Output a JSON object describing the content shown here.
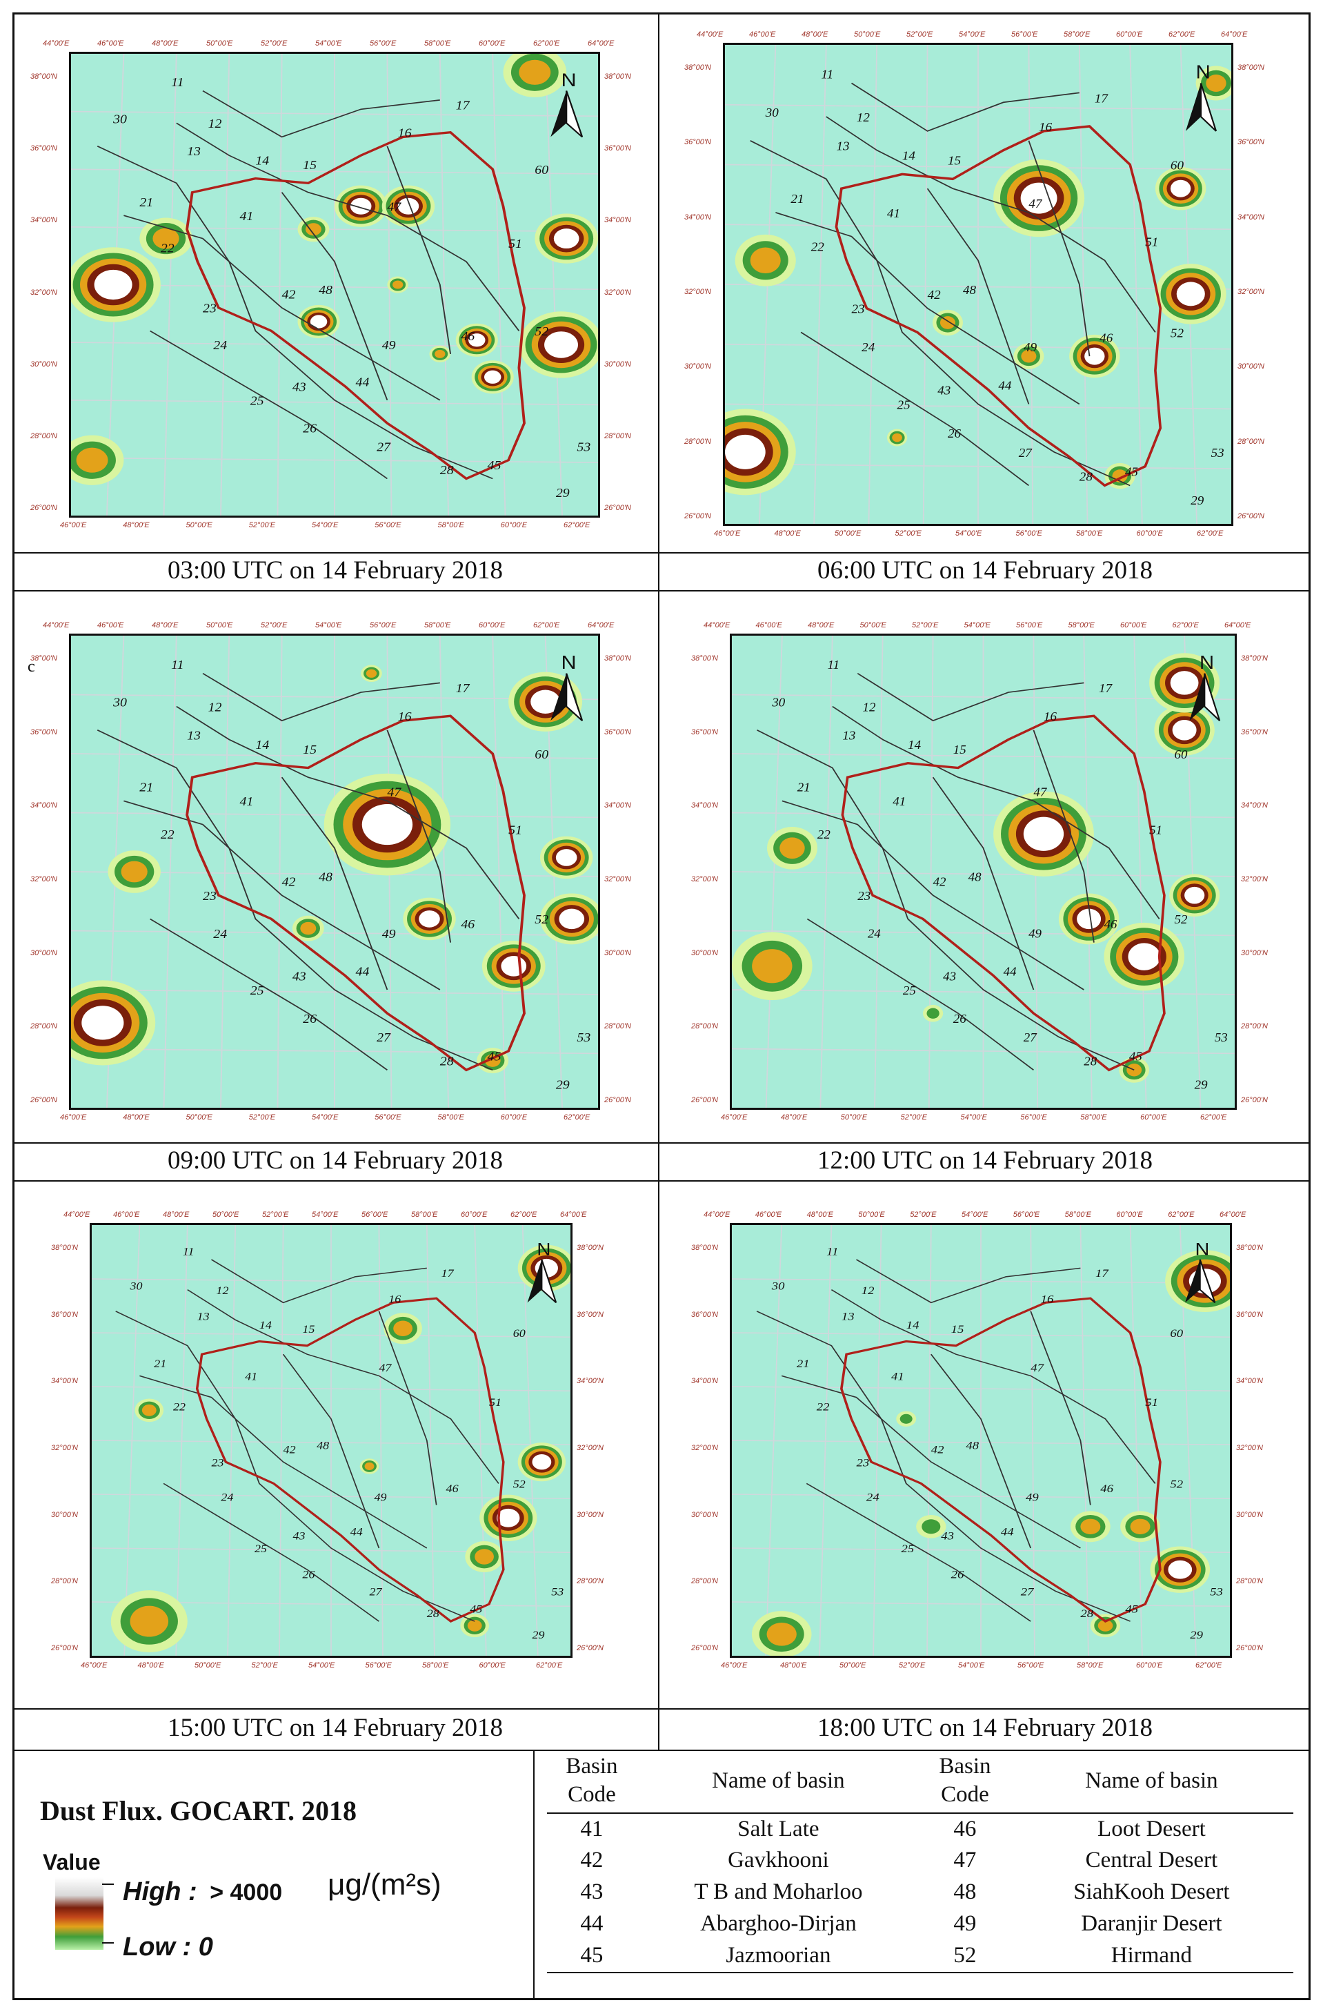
{
  "captions": [
    "03:00 UTC on 14 February 2018",
    "06:00 UTC on 14 February 2018",
    "09:00 UTC on 14 February 2018",
    "12:00 UTC on 14 February 2018",
    "15:00 UTC on 14 February 2018",
    "18:00 UTC on 14 February 2018"
  ],
  "map": {
    "top_ticks": [
      "44°00'E",
      "46°00'E",
      "48°00'E",
      "50°00'E",
      "52°00'E",
      "54°00'E",
      "56°00'E",
      "58°00'E",
      "60°00'E",
      "62°00'E",
      "64°00'E"
    ],
    "bottom_ticks": [
      "46°00'E",
      "48°00'E",
      "50°00'E",
      "52°00'E",
      "54°00'E",
      "56°00'E",
      "58°00'E",
      "60°00'E",
      "62°00'E"
    ],
    "lat_ticks": [
      "38°00'N",
      "36°00'N",
      "34°00'N",
      "32°00'N",
      "30°00'N",
      "28°00'N",
      "26°00'N"
    ],
    "north_label": "N",
    "basin_labels": [
      "11",
      "30",
      "12",
      "13",
      "14",
      "15",
      "16",
      "17",
      "60",
      "21",
      "41",
      "47",
      "51",
      "22",
      "48",
      "42",
      "23",
      "24",
      "49",
      "46",
      "52",
      "43",
      "44",
      "25",
      "26",
      "27",
      "28",
      "45",
      "53",
      "29"
    ],
    "panel_c_label": "c"
  },
  "legend": {
    "title": "Dust Flux. GOCART. 2018",
    "value_label": "Value",
    "high_label": "High :",
    "high_value": "> 4000",
    "unit": "μg/(m²s)",
    "low_label": "Low : 0",
    "colors": [
      "#ffffff",
      "#7a1f0b",
      "#c3461a",
      "#e3a21a",
      "#3f9e3a",
      "#b9f0a8"
    ]
  },
  "table": {
    "headers": [
      "Basin Code",
      "Name of basin",
      "Basin Code",
      "Name of basin"
    ],
    "rows": [
      [
        "41",
        "Salt Late",
        "46",
        "Loot Desert"
      ],
      [
        "42",
        "Gavkhooni",
        "47",
        "Central Desert"
      ],
      [
        "43",
        "T B and Moharloo",
        "48",
        "SiahKooh Desert"
      ],
      [
        "44",
        "Abarghoo-Dirjan",
        "49",
        "Daranjir Desert"
      ],
      [
        "45",
        "Jazmoorian",
        "52",
        "Hirmand"
      ]
    ]
  },
  "colors": {
    "sea_land": "#a8ecd8",
    "boundary": "#b0201a",
    "basin_lines": "#333333",
    "tick_text": "#a0352b"
  }
}
